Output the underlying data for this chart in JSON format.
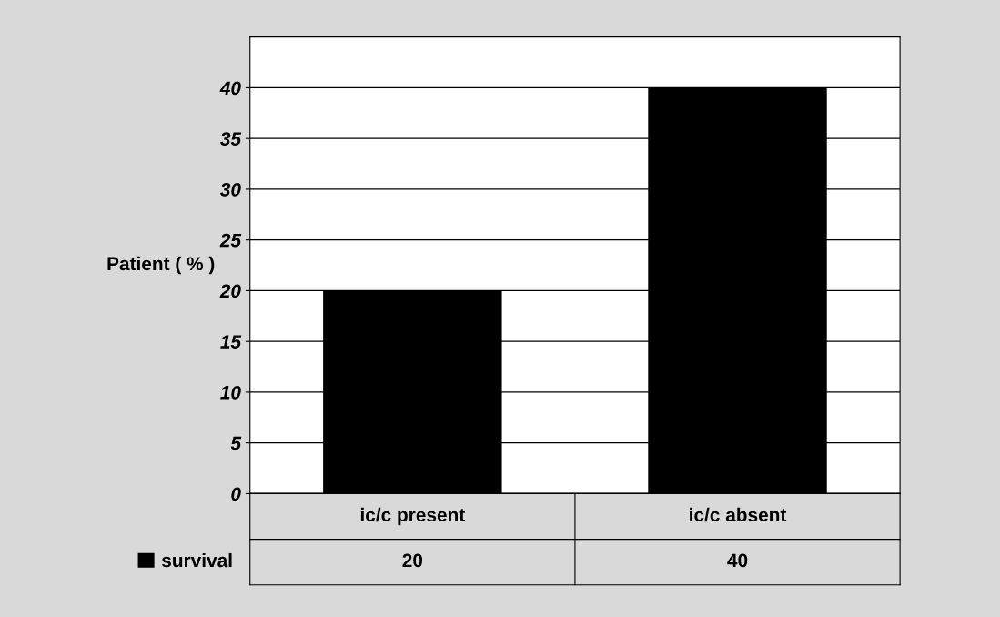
{
  "chart_data": {
    "type": "bar",
    "categories": [
      "ic/c present",
      "ic/c absent"
    ],
    "series": [
      {
        "name": "survival",
        "color": "#000000",
        "values": [
          20,
          40
        ]
      }
    ],
    "ylabel": "Patient ( % )",
    "ylim": [
      0,
      45
    ],
    "yticks": [
      0,
      5,
      10,
      15,
      20,
      25,
      30,
      35,
      40
    ],
    "grid": "y",
    "data_labels": true,
    "legend": "bottom left"
  }
}
